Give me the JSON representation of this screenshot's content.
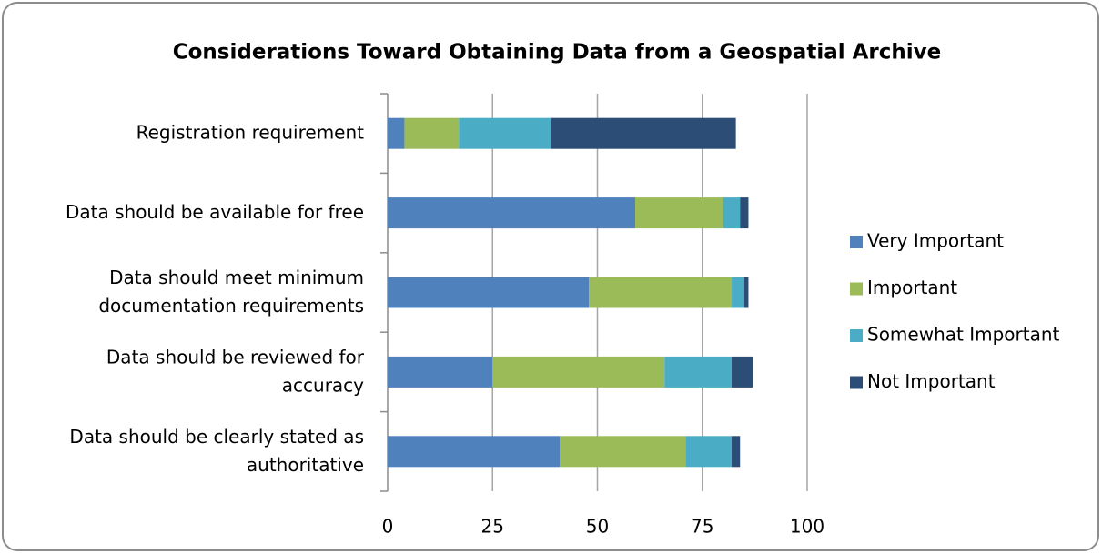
{
  "chart_data": {
    "type": "stacked_barh",
    "title": "Considerations Toward Obtaining Data from a Geospatial Archive",
    "categories": [
      "Registration requirement",
      "Data should be available for free",
      "Data should meet minimum\ndocumentation requirements",
      "Data should be reviewed for\naccuracy",
      "Data should be clearly stated as\nauthoritative"
    ],
    "series": [
      {
        "name": "Very Important",
        "color": "#4f81bd",
        "values": [
          4,
          59,
          48,
          25,
          41
        ]
      },
      {
        "name": "Important",
        "color": "#9bbb59",
        "values": [
          13,
          21,
          34,
          41,
          30
        ]
      },
      {
        "name": "Somewhat Important",
        "color": "#4bacc6",
        "values": [
          22,
          4,
          3,
          16,
          11
        ]
      },
      {
        "name": "Not Important",
        "color": "#2c4d75",
        "values": [
          44,
          2,
          1,
          5,
          2
        ]
      }
    ],
    "xlim": [
      0,
      100
    ],
    "xticks": [
      0,
      25,
      50,
      75,
      100
    ],
    "grid": true,
    "legend": "right"
  }
}
